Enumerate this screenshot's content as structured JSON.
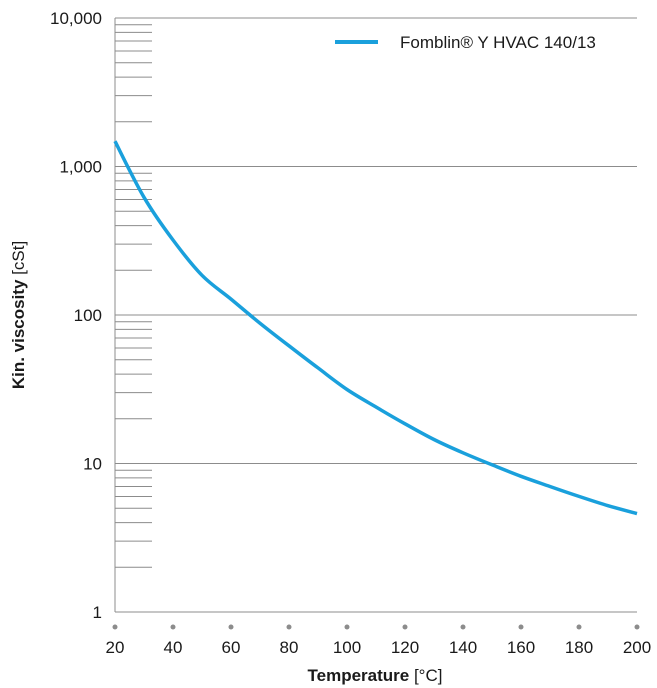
{
  "chart_data": {
    "type": "line",
    "xlabel_bold": "Temperature",
    "xlabel_unit": "[°C]",
    "ylabel_bold": "Kin. viscosity",
    "ylabel_unit": "[cSt]",
    "xlim": [
      20,
      200
    ],
    "ylim": [
      1,
      10000
    ],
    "yscale": "log",
    "x_ticks": [
      20,
      40,
      60,
      80,
      100,
      120,
      140,
      160,
      180,
      200
    ],
    "x_tick_labels": [
      "20",
      "40",
      "60",
      "80",
      "100",
      "120",
      "140",
      "160",
      "180",
      "200"
    ],
    "y_ticks": [
      1,
      10,
      100,
      1000,
      10000
    ],
    "y_tick_labels": [
      "1",
      "10",
      "100",
      "1,000",
      "10,000"
    ],
    "grid": "horizontal major lines",
    "legend_position": "top-right",
    "series": [
      {
        "name": "Fomblin® Y HVAC 140/13",
        "color": "#1aa0dc",
        "x": [
          20,
          30,
          40,
          50,
          60,
          70,
          80,
          90,
          100,
          110,
          120,
          130,
          140,
          150,
          160,
          170,
          180,
          190,
          200
        ],
        "y": [
          1480,
          620,
          320,
          185,
          128,
          88,
          62,
          44,
          31.5,
          24,
          18.5,
          14.5,
          11.8,
          9.8,
          8.2,
          7.0,
          6.0,
          5.2,
          4.6
        ]
      }
    ]
  },
  "colors": {
    "grid": "#8c8c8c",
    "axis": "#8c8c8c",
    "tick_dot": "#8c8c8c",
    "text": "#1a1a1a"
  }
}
